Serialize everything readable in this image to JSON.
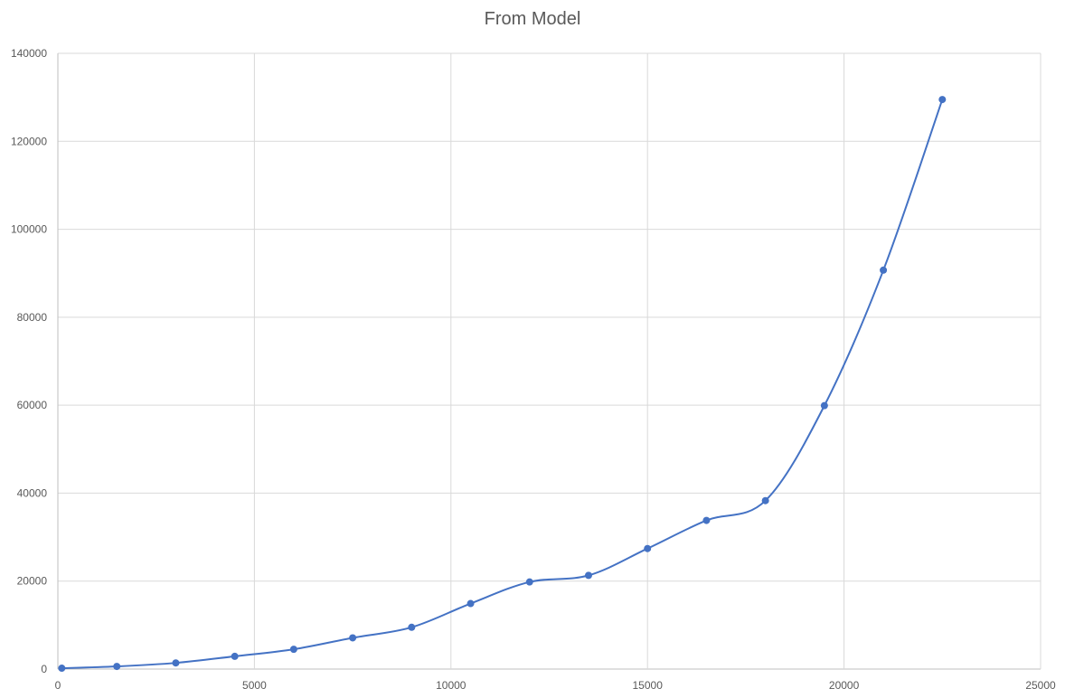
{
  "chart_data": {
    "type": "scatter",
    "title": "From Model",
    "xlabel": "",
    "ylabel": "",
    "xlim": [
      0,
      25000
    ],
    "ylim": [
      0,
      140000
    ],
    "x_ticks": [
      0,
      5000,
      10000,
      15000,
      20000,
      25000
    ],
    "y_ticks": [
      0,
      20000,
      40000,
      60000,
      80000,
      100000,
      120000,
      140000
    ],
    "grid": true,
    "legend": "none",
    "smooth_line": true,
    "series": [
      {
        "color": "#4472C4",
        "points": [
          {
            "x": 100,
            "y": 200
          },
          {
            "x": 1500,
            "y": 600
          },
          {
            "x": 3000,
            "y": 1400
          },
          {
            "x": 4500,
            "y": 2900
          },
          {
            "x": 6000,
            "y": 4500
          },
          {
            "x": 7500,
            "y": 7100
          },
          {
            "x": 9000,
            "y": 9500
          },
          {
            "x": 10500,
            "y": 14900
          },
          {
            "x": 12000,
            "y": 19800
          },
          {
            "x": 13500,
            "y": 21300
          },
          {
            "x": 15000,
            "y": 27400
          },
          {
            "x": 16500,
            "y": 33800
          },
          {
            "x": 18000,
            "y": 38300
          },
          {
            "x": 19500,
            "y": 59900
          },
          {
            "x": 21000,
            "y": 90700
          },
          {
            "x": 22500,
            "y": 129500
          }
        ]
      }
    ]
  },
  "colors": {
    "grid": "#d9d9d9",
    "axis": "#bfbfbf",
    "text": "#595959"
  }
}
